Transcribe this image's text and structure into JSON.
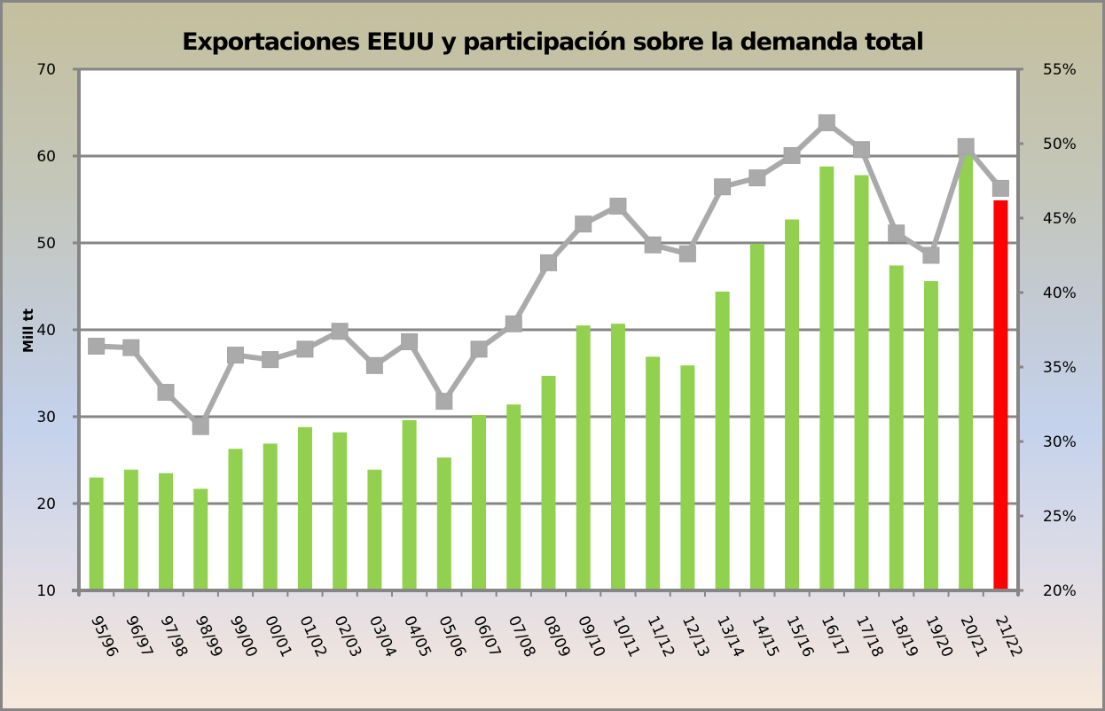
{
  "chart_data": {
    "type": "bar+line",
    "title": "Exportaciones EEUU y participación sobre la demanda total",
    "ylabel": "Mill tt",
    "y2label": "",
    "xlabel": "",
    "ylim": [
      10,
      70
    ],
    "y2lim": [
      20,
      55
    ],
    "yticks": [
      "70",
      "60",
      "50",
      "40",
      "30",
      "20",
      "10"
    ],
    "y2ticks": [
      "55%",
      "50%",
      "45%",
      "40%",
      "35%",
      "30%",
      "25%",
      "20%"
    ],
    "grid": true,
    "categories": [
      "95/96",
      "96/97",
      "97/98",
      "98/99",
      "99/00",
      "00/01",
      "01/02",
      "02/03",
      "03/04",
      "04/05",
      "05/06",
      "06/07",
      "07/08",
      "08/09",
      "09/10",
      "10/11",
      "11/12",
      "12/13",
      "13/14",
      "14/15",
      "15/16",
      "16/17",
      "17/18",
      "18/19",
      "19/20",
      "20/21",
      "21/22"
    ],
    "series": [
      {
        "name": "Exportaciones",
        "type": "bar",
        "axis": "left",
        "color": "#92d050",
        "highlight_color": "#ff0000",
        "highlight_index": 26,
        "values": [
          23.0,
          23.9,
          23.5,
          21.7,
          26.3,
          26.9,
          28.8,
          28.2,
          23.9,
          29.6,
          25.3,
          30.2,
          31.4,
          34.7,
          40.5,
          40.7,
          36.9,
          35.9,
          44.4,
          49.9,
          52.7,
          58.8,
          57.8,
          47.4,
          45.6,
          60.5,
          54.9
        ]
      },
      {
        "name": "Participación sobre demanda total",
        "type": "line",
        "axis": "right",
        "unit": "%",
        "color": "#aaaaaa",
        "marker": "square",
        "values": [
          36.4,
          36.3,
          33.3,
          31.0,
          35.8,
          35.5,
          36.2,
          37.4,
          35.1,
          36.7,
          32.7,
          36.2,
          37.9,
          42.0,
          44.6,
          45.8,
          43.2,
          42.6,
          47.1,
          47.7,
          49.2,
          51.4,
          49.6,
          44.0,
          42.5,
          49.8,
          47.0
        ]
      }
    ],
    "legend": "none"
  }
}
